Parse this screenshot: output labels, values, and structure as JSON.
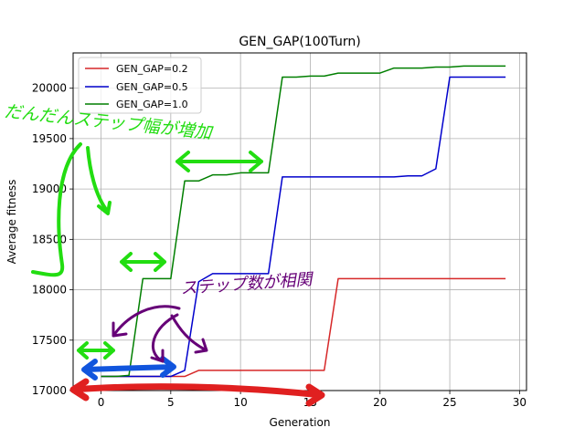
{
  "chart_data": {
    "type": "line",
    "title": "GEN_GAP(100Turn)",
    "xlabel": "Generation",
    "ylabel": "Average fitness",
    "xlim": [
      -2,
      30.5
    ],
    "ylim": [
      17000,
      20350
    ],
    "xticks": [
      0,
      5,
      10,
      15,
      20,
      25,
      30
    ],
    "yticks": [
      17000,
      17500,
      18000,
      18500,
      19000,
      19500,
      20000
    ],
    "grid": true,
    "legend_position": "top-left",
    "series": [
      {
        "name": "GEN_GAP=0.2",
        "color": "#d62728",
        "x": [
          0,
          1,
          2,
          3,
          4,
          5,
          6,
          7,
          8,
          9,
          10,
          11,
          12,
          13,
          14,
          15,
          16,
          17,
          18,
          19,
          20,
          21,
          22,
          23,
          24,
          25,
          26,
          27,
          28,
          29
        ],
        "y": [
          17140,
          17140,
          17140,
          17140,
          17140,
          17140,
          17140,
          17200,
          17200,
          17200,
          17200,
          17200,
          17200,
          17200,
          17200,
          17200,
          17200,
          18110,
          18110,
          18110,
          18110,
          18110,
          18110,
          18110,
          18110,
          18110,
          18110,
          18110,
          18110,
          18110
        ]
      },
      {
        "name": "GEN_GAP=0.5",
        "color": "#0000cc",
        "x": [
          0,
          1,
          2,
          3,
          4,
          5,
          6,
          7,
          8,
          9,
          10,
          11,
          12,
          13,
          14,
          15,
          16,
          17,
          18,
          19,
          20,
          21,
          22,
          23,
          24,
          25,
          26,
          27,
          28,
          29
        ],
        "y": [
          17140,
          17140,
          17140,
          17140,
          17140,
          17140,
          17200,
          18080,
          18160,
          18160,
          18160,
          18160,
          18160,
          19120,
          19120,
          19120,
          19120,
          19120,
          19120,
          19120,
          19120,
          19120,
          19130,
          19130,
          19200,
          20110,
          20110,
          20110,
          20110,
          20110
        ]
      },
      {
        "name": "GEN_GAP=1.0",
        "color": "#007f00",
        "x": [
          0,
          1,
          2,
          3,
          4,
          5,
          6,
          7,
          8,
          9,
          10,
          11,
          12,
          13,
          14,
          15,
          16,
          17,
          18,
          19,
          20,
          21,
          22,
          23,
          24,
          25,
          26,
          27,
          28,
          29
        ],
        "y": [
          17140,
          17140,
          17150,
          18110,
          18110,
          18110,
          19080,
          19080,
          19140,
          19140,
          19160,
          19160,
          19160,
          20110,
          20110,
          20120,
          20120,
          20150,
          20150,
          20150,
          20150,
          20200,
          20200,
          20200,
          20210,
          20210,
          20220,
          20220,
          20220,
          20220
        ]
      }
    ],
    "annotations": [
      {
        "id": "green-note",
        "text": "だんだんステップ幅が増加",
        "color": "#22dd11"
      },
      {
        "id": "purple-note",
        "text": "ステップ数が相関",
        "color": "#660077"
      }
    ]
  }
}
